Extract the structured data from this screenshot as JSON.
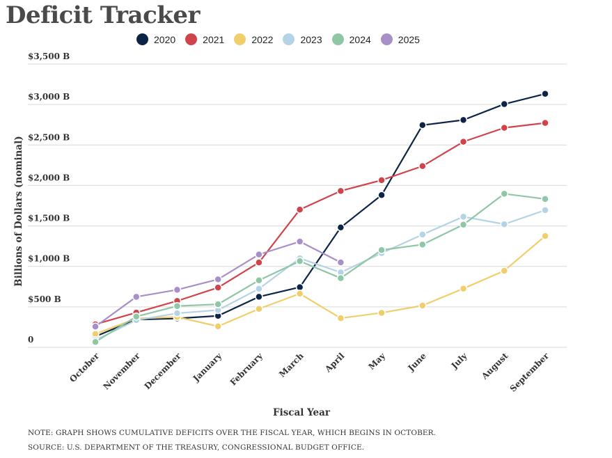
{
  "title": "Deficit Tracker",
  "chart_data": {
    "type": "line",
    "title": "Deficit Tracker",
    "xlabel": "Fiscal Year",
    "ylabel": "Billions of Dollars (nominal)",
    "ylim": [
      0,
      3500
    ],
    "yticks": [
      {
        "value": 0,
        "label": "0"
      },
      {
        "value": 500,
        "label": "$500 B"
      },
      {
        "value": 1000,
        "label": "$1,000 B"
      },
      {
        "value": 1500,
        "label": "$1,500 B"
      },
      {
        "value": 2000,
        "label": "$2,000 B"
      },
      {
        "value": 2500,
        "label": "$2,500 B"
      },
      {
        "value": 3000,
        "label": "$3,000 B"
      },
      {
        "value": 3500,
        "label": "$3,500 B"
      }
    ],
    "categories": [
      "October",
      "November",
      "December",
      "January",
      "February",
      "March",
      "April",
      "May",
      "June",
      "July",
      "August",
      "September"
    ],
    "grid": true,
    "legend_position": "top",
    "series": [
      {
        "name": "2020",
        "color": "#0d2447",
        "values": [
          134,
          343,
          357,
          389,
          625,
          743,
          1481,
          1881,
          2745,
          2809,
          3005,
          3132
        ]
      },
      {
        "name": "2021",
        "color": "#d1434b",
        "values": [
          284,
          429,
          573,
          738,
          1048,
          1702,
          1932,
          2065,
          2239,
          2540,
          2712,
          2772
        ]
      },
      {
        "name": "2022",
        "color": "#f1cd6b",
        "values": [
          165,
          356,
          375,
          259,
          475,
          663,
          360,
          426,
          516,
          726,
          946,
          1375
        ]
      },
      {
        "name": "2023",
        "color": "#b4d3e5",
        "values": [
          88,
          336,
          421,
          460,
          723,
          1100,
          925,
          1164,
          1393,
          1614,
          1521,
          1695
        ]
      },
      {
        "name": "2024",
        "color": "#8fc6a6",
        "values": [
          67,
          380,
          510,
          532,
          828,
          1065,
          855,
          1202,
          1270,
          1516,
          1897,
          1833
        ]
      },
      {
        "name": "2025",
        "color": "#a88fc7",
        "values": [
          257,
          624,
          711,
          840,
          1147,
          1307,
          1049,
          null,
          null,
          null,
          null,
          null
        ]
      }
    ]
  },
  "notes": [
    "NOTE: GRAPH SHOWS CUMULATIVE DEFICITS OVER THE FISCAL YEAR, WHICH BEGINS IN OCTOBER.",
    "SOURCE: U.S. DEPARTMENT OF THE TREASURY, CONGRESSIONAL BUDGET OFFICE."
  ]
}
